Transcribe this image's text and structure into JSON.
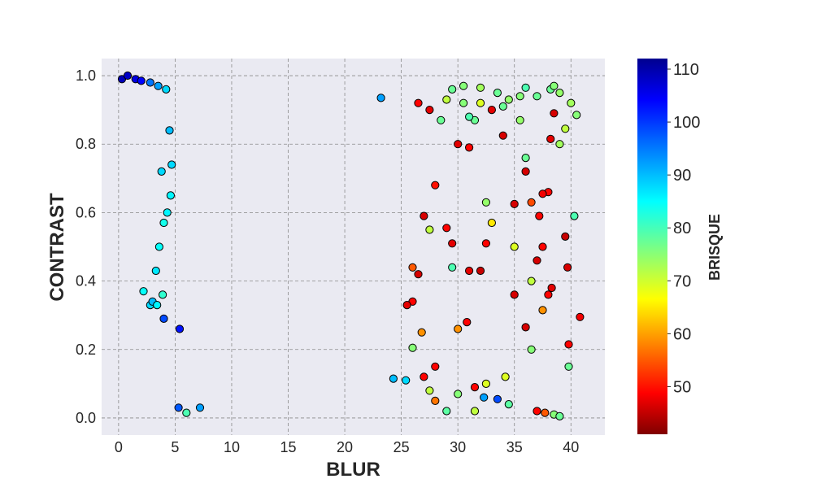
{
  "chart_data": {
    "type": "scatter",
    "xlabel": "BLUR",
    "ylabel": "CONTRAST",
    "colorbar_label": "BRISQUE",
    "xlim": [
      -1.5,
      43
    ],
    "ylim": [
      -0.05,
      1.05
    ],
    "xticks": [
      "0",
      "5",
      "10",
      "15",
      "20",
      "25",
      "30",
      "35",
      "40"
    ],
    "yticks": [
      "0.0",
      "0.2",
      "0.4",
      "0.6",
      "0.8",
      "1.0"
    ],
    "color_range": [
      41,
      112
    ],
    "colorbar_ticks": [
      "50",
      "60",
      "70",
      "80",
      "90",
      "100",
      "110"
    ],
    "colormap": "jet",
    "grid": true,
    "plot_background": "#eaeaf2",
    "point_edge_color": "#000000",
    "points": [
      [
        0.3,
        0.99,
        108
      ],
      [
        0.8,
        1.0,
        107
      ],
      [
        1.5,
        0.99,
        105
      ],
      [
        2.0,
        0.985,
        103
      ],
      [
        2.8,
        0.98,
        95
      ],
      [
        3.5,
        0.97,
        92
      ],
      [
        4.2,
        0.96,
        88
      ],
      [
        2.2,
        0.37,
        85
      ],
      [
        2.8,
        0.33,
        88
      ],
      [
        3.0,
        0.34,
        90
      ],
      [
        3.4,
        0.33,
        86
      ],
      [
        3.3,
        0.43,
        87
      ],
      [
        3.6,
        0.5,
        85
      ],
      [
        3.8,
        0.72,
        88
      ],
      [
        4.0,
        0.57,
        84
      ],
      [
        4.0,
        0.29,
        98
      ],
      [
        5.4,
        0.26,
        102
      ],
      [
        5.3,
        0.03,
        97
      ],
      [
        4.3,
        0.6,
        86
      ],
      [
        4.5,
        0.84,
        90
      ],
      [
        4.6,
        0.65,
        86
      ],
      [
        4.7,
        0.74,
        88
      ],
      [
        3.9,
        0.36,
        82
      ],
      [
        23.2,
        0.935,
        92
      ],
      [
        24.3,
        0.115,
        90
      ],
      [
        25.4,
        0.11,
        88
      ],
      [
        32.3,
        0.06,
        92
      ],
      [
        33.5,
        0.055,
        98
      ],
      [
        7.2,
        0.03,
        92
      ],
      [
        6.0,
        0.015,
        80
      ],
      [
        38.2,
        0.96,
        78
      ],
      [
        38.5,
        0.97,
        76
      ],
      [
        39.0,
        0.95,
        75
      ],
      [
        40.0,
        0.92,
        74
      ],
      [
        40.5,
        0.885,
        76
      ],
      [
        39.5,
        0.845,
        72
      ],
      [
        39.0,
        0.8,
        74
      ],
      [
        37.0,
        0.94,
        78
      ],
      [
        36.0,
        0.965,
        80
      ],
      [
        35.5,
        0.94,
        76
      ],
      [
        34.5,
        0.93,
        75
      ],
      [
        33.5,
        0.95,
        78
      ],
      [
        32.0,
        0.965,
        74
      ],
      [
        30.5,
        0.97,
        76
      ],
      [
        29.5,
        0.96,
        78
      ],
      [
        38.2,
        0.815,
        48
      ],
      [
        38.5,
        0.89,
        47
      ],
      [
        38.0,
        0.66,
        50
      ],
      [
        39.5,
        0.53,
        46
      ],
      [
        39.7,
        0.44,
        47
      ],
      [
        40.8,
        0.295,
        49
      ],
      [
        39.8,
        0.215,
        50
      ],
      [
        39.8,
        0.15,
        78
      ],
      [
        40.3,
        0.59,
        80
      ],
      [
        37.5,
        0.655,
        49
      ],
      [
        37.2,
        0.59,
        50
      ],
      [
        37.5,
        0.5,
        50
      ],
      [
        38.3,
        0.38,
        48
      ],
      [
        38.0,
        0.36,
        50
      ],
      [
        36.5,
        0.4,
        72
      ],
      [
        37.0,
        0.46,
        47
      ],
      [
        36.0,
        0.265,
        47
      ],
      [
        37.5,
        0.315,
        60
      ],
      [
        36.5,
        0.2,
        76
      ],
      [
        37.0,
        0.02,
        50
      ],
      [
        37.7,
        0.015,
        56
      ],
      [
        38.5,
        0.01,
        76
      ],
      [
        39.0,
        0.005,
        78
      ],
      [
        34.2,
        0.12,
        70
      ],
      [
        34.5,
        0.04,
        79
      ],
      [
        35.0,
        0.36,
        47
      ],
      [
        35.0,
        0.5,
        70
      ],
      [
        35.0,
        0.625,
        47
      ],
      [
        36.0,
        0.72,
        47
      ],
      [
        36.5,
        0.63,
        55
      ],
      [
        36.0,
        0.76,
        78
      ],
      [
        35.5,
        0.87,
        75
      ],
      [
        34.0,
        0.825,
        47
      ],
      [
        33.0,
        0.57,
        66
      ],
      [
        32.5,
        0.63,
        75
      ],
      [
        32.5,
        0.51,
        50
      ],
      [
        32.0,
        0.43,
        46
      ],
      [
        31.0,
        0.43,
        48
      ],
      [
        31.5,
        0.09,
        50
      ],
      [
        32.5,
        0.1,
        70
      ],
      [
        31.5,
        0.02,
        72
      ],
      [
        30.0,
        0.26,
        60
      ],
      [
        30.8,
        0.28,
        50
      ],
      [
        29.5,
        0.44,
        80
      ],
      [
        29.5,
        0.51,
        48
      ],
      [
        29.0,
        0.555,
        50
      ],
      [
        28.0,
        0.68,
        51
      ],
      [
        27.5,
        0.55,
        72
      ],
      [
        27.0,
        0.59,
        47
      ],
      [
        26.5,
        0.42,
        47
      ],
      [
        26.0,
        0.44,
        56
      ],
      [
        26.0,
        0.34,
        50
      ],
      [
        25.5,
        0.33,
        48
      ],
      [
        26.8,
        0.25,
        60
      ],
      [
        26.0,
        0.205,
        76
      ],
      [
        27.0,
        0.12,
        50
      ],
      [
        27.5,
        0.08,
        72
      ],
      [
        28.0,
        0.05,
        58
      ],
      [
        30.0,
        0.07,
        76
      ],
      [
        29.0,
        0.02,
        79
      ],
      [
        28.0,
        0.15,
        50
      ],
      [
        30.0,
        0.8,
        48
      ],
      [
        31.0,
        0.79,
        50
      ],
      [
        31.5,
        0.87,
        78
      ],
      [
        32.0,
        0.92,
        70
      ],
      [
        33.0,
        0.9,
        48
      ],
      [
        34.0,
        0.91,
        78
      ],
      [
        28.5,
        0.87,
        78
      ],
      [
        27.5,
        0.9,
        48
      ],
      [
        26.5,
        0.92,
        50
      ],
      [
        29.0,
        0.93,
        72
      ],
      [
        30.5,
        0.92,
        76
      ],
      [
        31.0,
        0.88,
        80
      ]
    ]
  }
}
